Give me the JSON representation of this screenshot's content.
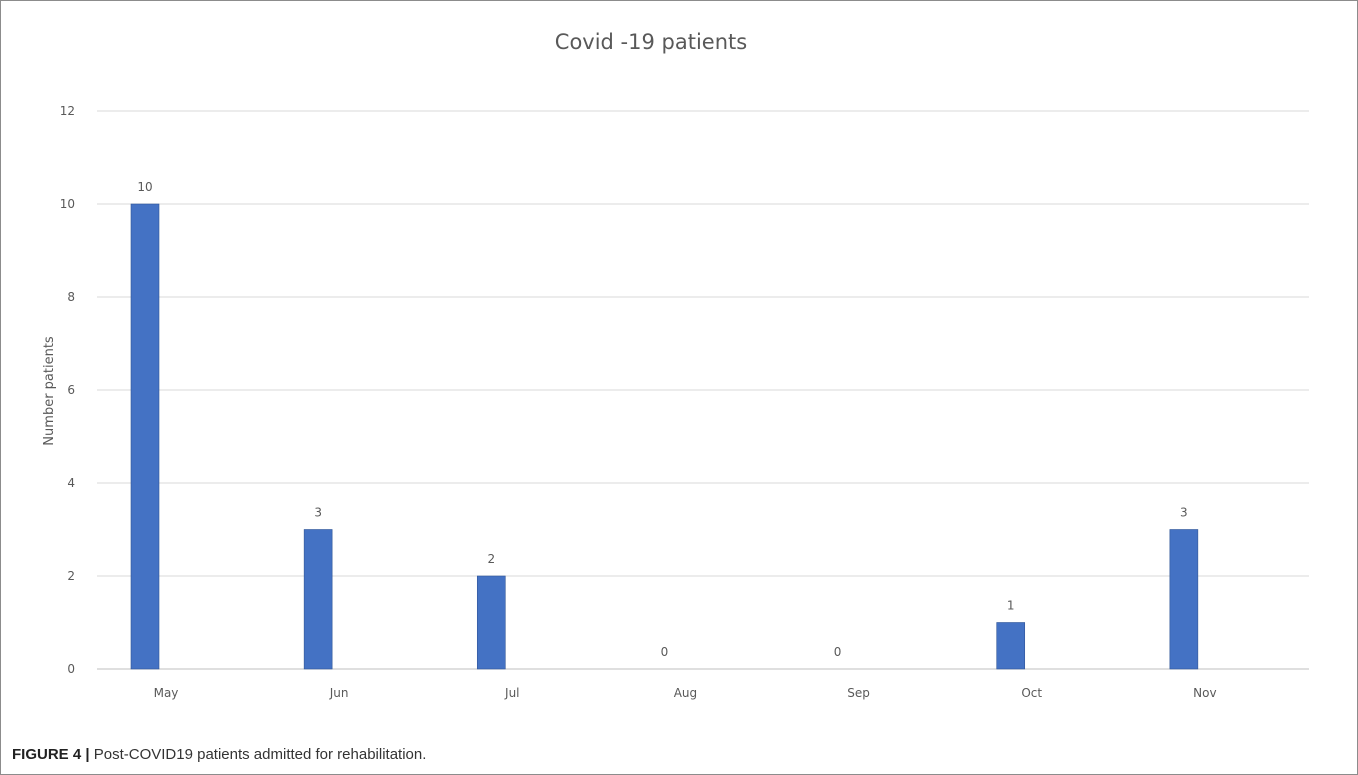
{
  "figure": {
    "label": "FIGURE 4",
    "separator": "|",
    "caption": "Post-COVID19 patients admitted for rehabilitation."
  },
  "chart_data": {
    "type": "bar",
    "title": "Covid -19 patients",
    "xlabel": "",
    "ylabel": "Number  patients",
    "categories": [
      "May",
      "Jun",
      "Jul",
      "Aug",
      "Sep",
      "Oct",
      "Nov"
    ],
    "values": [
      10,
      3,
      2,
      0,
      0,
      1,
      3
    ],
    "data_labels": [
      "10",
      "3",
      "2",
      "0",
      "0",
      "1",
      "3"
    ],
    "ylim": [
      0,
      12
    ],
    "yticks": [
      "0",
      "2",
      "4",
      "6",
      "8",
      "10",
      "12"
    ],
    "grid": true,
    "legend": "none",
    "colors": {
      "bar": "#4472c4",
      "bar_edge": "#2f5597",
      "grid": "#d9d9d9",
      "axis": "#bfbfbf",
      "text": "#595959"
    }
  }
}
